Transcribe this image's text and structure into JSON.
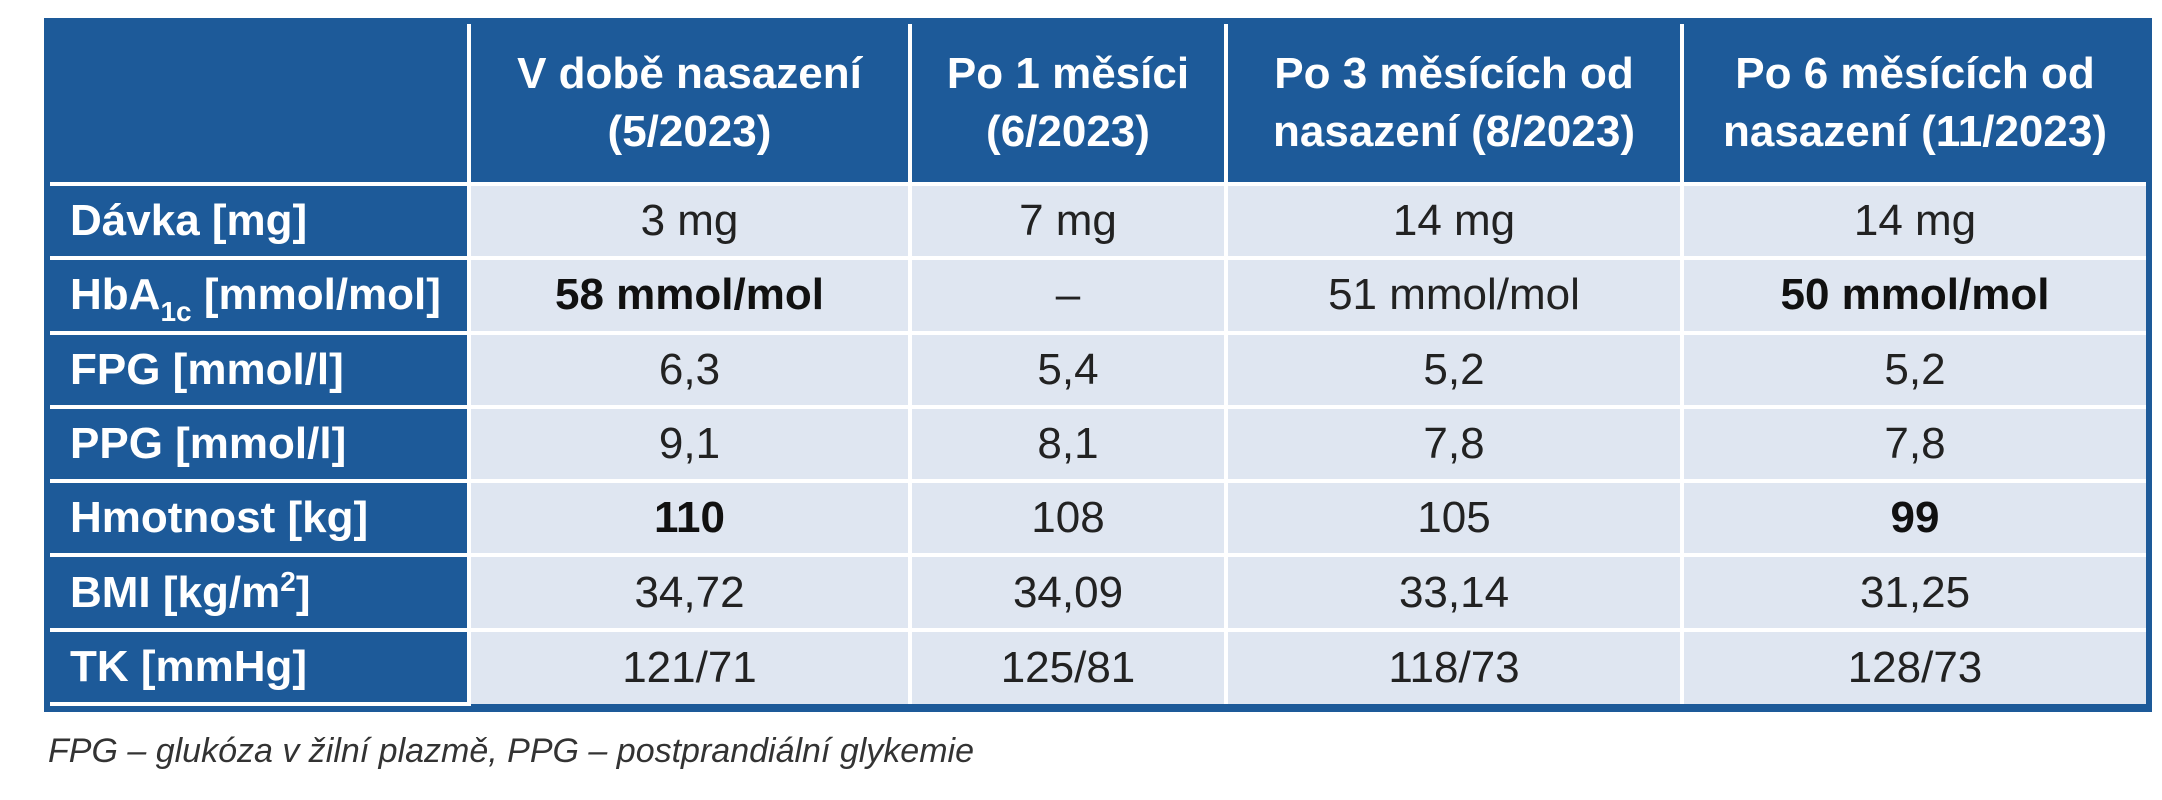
{
  "table": {
    "header": {
      "corner": "",
      "columns": [
        "V době nasazení (5/2023)",
        "Po 1 měsíci (6/2023)",
        "Po 3 měsících od nasazení (8/2023)",
        "Po 6 měsících od nasazení (11/2023)"
      ]
    },
    "rows": [
      {
        "label": "Dávka [mg]",
        "values": [
          "3 mg",
          "7 mg",
          "14 mg",
          "14 mg"
        ]
      },
      {
        "label_parts": [
          "HbA",
          "1c",
          " [mmol/mol]"
        ],
        "values": [
          "58 mmol/mol",
          "–",
          "51 mmol/mol",
          "50 mmol/mol"
        ]
      },
      {
        "label": "FPG [mmol/l]",
        "values": [
          "6,3",
          "5,4",
          "5,2",
          "5,2"
        ]
      },
      {
        "label": "PPG [mmol/l]",
        "values": [
          "9,1",
          "8,1",
          "7,8",
          "7,8"
        ]
      },
      {
        "label": "Hmotnost [kg]",
        "values": [
          "110",
          "108",
          "105",
          "99"
        ]
      },
      {
        "label_parts": [
          "BMI [kg/m",
          "2",
          "]"
        ],
        "values": [
          "34,72",
          "34,09",
          "33,14",
          "31,25"
        ]
      },
      {
        "label": "TK [mmHg]",
        "values": [
          "121/71",
          "125/81",
          "118/73",
          "128/73"
        ]
      }
    ]
  },
  "footnote": "FPG – glukóza v žilní plazmě, PPG – postprandiální glykemie",
  "colors": {
    "header_bg": "#1d5a99",
    "cell_bg": "#dfe6f1",
    "grid": "#ffffff"
  }
}
